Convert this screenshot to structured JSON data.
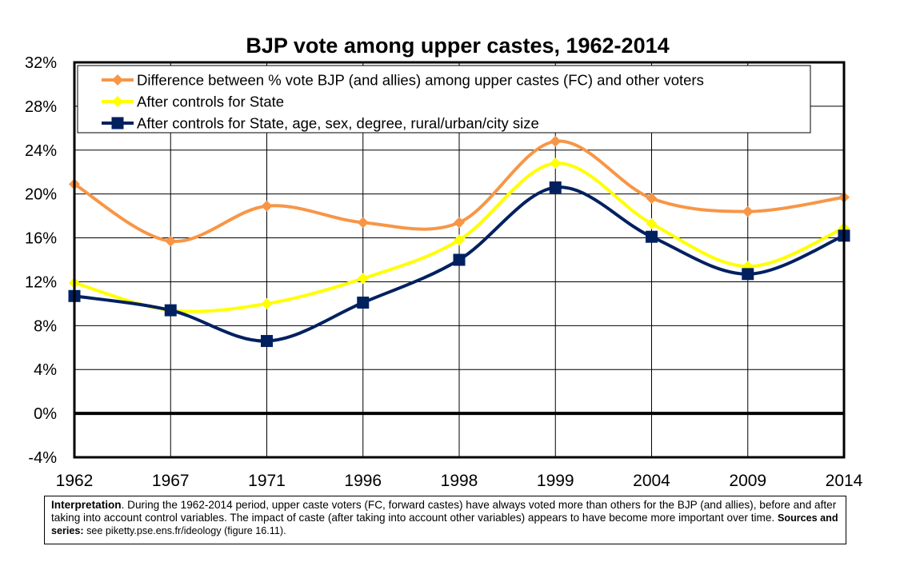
{
  "chart_data": {
    "type": "line",
    "title": "BJP vote among upper castes, 1962-2014",
    "categories": [
      "1962",
      "1967",
      "1971",
      "1996",
      "1998",
      "1999",
      "2004",
      "2009",
      "2014"
    ],
    "y_ticks": [
      "32%",
      "28%",
      "24%",
      "20%",
      "16%",
      "12%",
      "8%",
      "4%",
      "0%",
      "-4%"
    ],
    "ylim": [
      -4,
      32
    ],
    "y_unit": "%",
    "grid": true,
    "legend_position": "top-left inside plot",
    "series": [
      {
        "name": "Difference between % vote BJP (and allies) among upper castes (FC) and other voters",
        "color": "#F79646",
        "marker": "diamond",
        "values": [
          20.9,
          15.7,
          18.9,
          17.4,
          17.4,
          24.8,
          19.6,
          18.4,
          19.7
        ]
      },
      {
        "name": "After controls for State",
        "color": "#FFFF00",
        "marker": "diamond",
        "values": [
          11.9,
          9.4,
          10.0,
          12.3,
          15.8,
          22.8,
          17.3,
          13.4,
          16.9
        ]
      },
      {
        "name": "After controls for State, age, sex, degree, rural/urban/city size",
        "color": "#002060",
        "marker": "square",
        "values": [
          10.7,
          9.4,
          6.6,
          10.1,
          14.0,
          20.6,
          16.1,
          12.7,
          16.2
        ]
      }
    ]
  },
  "note": {
    "lead": "Interpretation",
    "body": ". During the 1962-2014 period, upper caste voters (FC, forward castes) have always voted more than others for the BJP (and allies), before and after taking into account control variables. The impact of caste (after taking into account other variables) appears to have become more important over time. ",
    "sources_label": "Sources and series:",
    "sources_text": " see piketty.pse.ens.fr/ideology (figure 16.11)."
  }
}
